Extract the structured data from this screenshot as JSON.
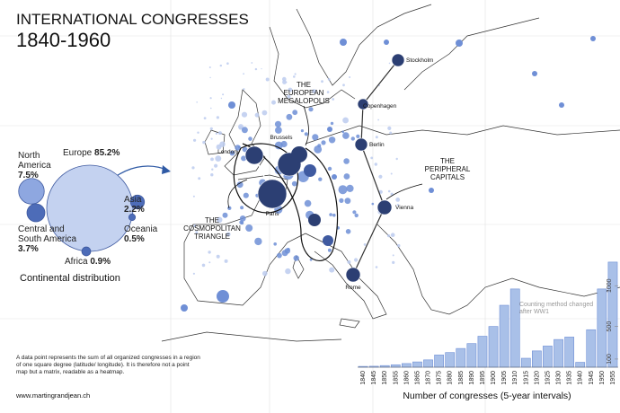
{
  "title": "INTERNATIONAL CONGRESSES",
  "subtitle": "1840-1960",
  "continental": {
    "title": "Continental distribution",
    "names": [
      "Europe",
      "North America",
      "Central and South America",
      "Asia",
      "Oceania",
      "Africa"
    ],
    "values": [
      85.2,
      7.5,
      3.7,
      2.2,
      0.5,
      0.9
    ],
    "value_labels": [
      "85.2%",
      "7.5%",
      "3.7%",
      "2.2%",
      "0.5%",
      "0.9%"
    ]
  },
  "cities": [
    "Stockholm",
    "Copenhagen",
    "Berlin",
    "Brussels",
    "London",
    "Paris",
    "Vienna",
    "Rome"
  ],
  "annotations": {
    "megalopolis": [
      "THE",
      "EUROPEAN",
      "MEGALOPOLIS"
    ],
    "triangle": [
      "THE",
      "COSMOPOLITAN",
      "TRIANGLE"
    ],
    "peripheral": [
      "THE",
      "PERIPHERAL",
      "CAPITALS"
    ]
  },
  "note": "A data point represents the sum of all organized congresses in a region of one square degree (latitude/ longitude). It is therefore not a point map but a matrix, readable as a heatmap.",
  "website": "www.martingrandjean.ch",
  "chart_data": {
    "type": "bar",
    "x_label": "Number of congresses (5-year intervals)",
    "annotation": "Counting method changed after WW1",
    "color": "#a9c0e8",
    "categories": [
      "1840",
      "1845",
      "1850",
      "1855",
      "1860",
      "1865",
      "1870",
      "1875",
      "1880",
      "1885",
      "1890",
      "1895",
      "1900",
      "1905",
      "1910",
      "1915",
      "1920",
      "1925",
      "1930",
      "1935",
      "1940",
      "1945",
      "1950",
      "1955"
    ],
    "values": [
      10,
      12,
      20,
      30,
      45,
      65,
      90,
      150,
      180,
      230,
      290,
      380,
      500,
      760,
      960,
      110,
      200,
      260,
      340,
      370,
      60,
      460,
      960,
      1290
    ],
    "ylim": [
      0,
      1300
    ],
    "yticks": [
      100,
      500,
      1000
    ]
  }
}
